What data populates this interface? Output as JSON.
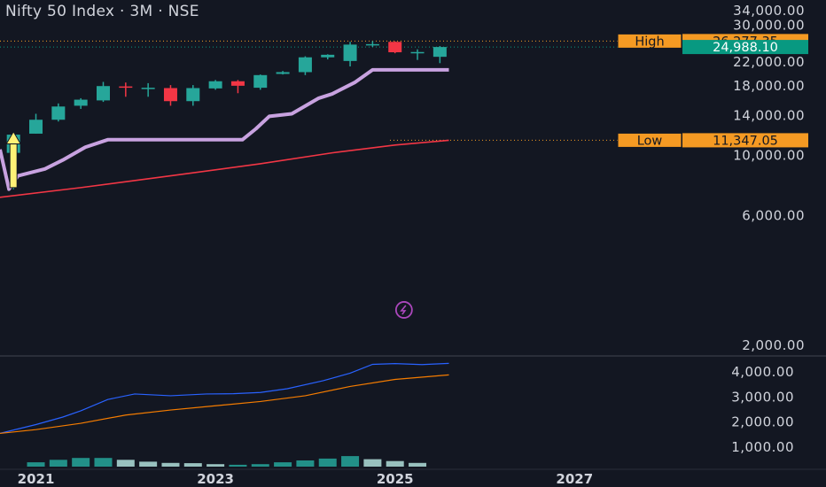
{
  "header": {
    "title": "Nifty 50 Index · 3M · NSE"
  },
  "colors": {
    "background": "#131722",
    "up": "#26a69a",
    "down": "#f23645",
    "text": "#d1d4dc",
    "stair": "#c8a2e0",
    "ma": "#f23645",
    "highlight_tag": "#f59a23",
    "price_tag": "#089981",
    "blue_line": "#2962ff",
    "orange_line": "#f57c00",
    "arrow": "#fff176",
    "icon": "#ab47bc"
  },
  "markers": {
    "high_label": "High",
    "high_value": "26,277.35",
    "high_level": 26277.35,
    "last_value": "24,988.10",
    "last_level": 24988.1,
    "low_label": "Low",
    "low_value": "11,347.05",
    "low_level": 11347.05,
    "flash_icon": "lightning-icon",
    "arrow_icon": "up-arrow-icon"
  },
  "chart_data": [
    {
      "type": "candlestick",
      "title": "Nifty 50 Index · 3M · NSE",
      "scale": "log",
      "ylim": [
        2000,
        34000
      ],
      "y_ticks": [
        {
          "value": 34000,
          "label": "34,000.00"
        },
        {
          "value": 30000,
          "label": "30,000.00"
        },
        {
          "value": 22000,
          "label": "22,000.00"
        },
        {
          "value": 18000,
          "label": "18,000.00"
        },
        {
          "value": 14000,
          "label": "14,000.00"
        },
        {
          "value": 10000,
          "label": "10,000.00"
        },
        {
          "value": 6000,
          "label": "6,000.00"
        },
        {
          "value": 2000,
          "label": "2,000.00"
        }
      ],
      "x_ticks": [
        {
          "value": 2021.0,
          "label": "2021"
        },
        {
          "value": 2023.0,
          "label": "2023"
        },
        {
          "value": 2025.0,
          "label": "2025"
        },
        {
          "value": 2027.0,
          "label": "2027"
        }
      ],
      "xlim": [
        2020.6,
        2028.3
      ],
      "candles": [
        {
          "t": 2020.75,
          "o": 10200,
          "h": 12000,
          "l": 7500,
          "c": 11900
        },
        {
          "t": 2021.0,
          "o": 12000,
          "h": 14200,
          "l": 12000,
          "c": 13500
        },
        {
          "t": 2021.25,
          "o": 13500,
          "h": 15500,
          "l": 13300,
          "c": 15100
        },
        {
          "t": 2021.5,
          "o": 15200,
          "h": 16200,
          "l": 14800,
          "c": 16000
        },
        {
          "t": 2021.75,
          "o": 15900,
          "h": 18600,
          "l": 15700,
          "c": 17950
        },
        {
          "t": 2022.0,
          "o": 17900,
          "h": 18500,
          "l": 16400,
          "c": 17700
        },
        {
          "t": 2022.25,
          "o": 17650,
          "h": 18400,
          "l": 16400,
          "c": 17700
        },
        {
          "t": 2022.5,
          "o": 17650,
          "h": 18100,
          "l": 15200,
          "c": 15800
        },
        {
          "t": 2022.75,
          "o": 15800,
          "h": 18100,
          "l": 15200,
          "c": 17650
        },
        {
          "t": 2023.0,
          "o": 17600,
          "h": 18900,
          "l": 17400,
          "c": 18700
        },
        {
          "t": 2023.25,
          "o": 18700,
          "h": 18900,
          "l": 16900,
          "c": 18000
        },
        {
          "t": 2023.5,
          "o": 17700,
          "h": 19800,
          "l": 17400,
          "c": 19700
        },
        {
          "t": 2023.75,
          "o": 19900,
          "h": 20400,
          "l": 19800,
          "c": 20200
        },
        {
          "t": 2024.0,
          "o": 20200,
          "h": 23100,
          "l": 19700,
          "c": 22900
        },
        {
          "t": 2024.25,
          "o": 22900,
          "h": 23500,
          "l": 22500,
          "c": 23400
        },
        {
          "t": 2024.5,
          "o": 22200,
          "h": 26100,
          "l": 21200,
          "c": 25500
        },
        {
          "t": 2024.75,
          "o": 25500,
          "h": 26277,
          "l": 25000,
          "c": 25600
        },
        {
          "t": 2025.0,
          "o": 26100,
          "h": 26200,
          "l": 23700,
          "c": 23900
        },
        {
          "t": 2025.25,
          "o": 23900,
          "h": 24500,
          "l": 22400,
          "c": 23950
        },
        {
          "t": 2025.5,
          "o": 23000,
          "h": 25200,
          "l": 21800,
          "c": 24988
        }
      ],
      "stair_line": [
        {
          "t": 2020.6,
          "v": 10500
        },
        {
          "t": 2020.7,
          "v": 7500
        },
        {
          "t": 2020.8,
          "v": 8400
        },
        {
          "t": 2021.1,
          "v": 8900
        },
        {
          "t": 2021.3,
          "v": 9600
        },
        {
          "t": 2021.55,
          "v": 10700
        },
        {
          "t": 2021.8,
          "v": 11400
        },
        {
          "t": 2022.0,
          "v": 11400
        },
        {
          "t": 2023.3,
          "v": 11400
        },
        {
          "t": 2023.45,
          "v": 12500
        },
        {
          "t": 2023.6,
          "v": 13900
        },
        {
          "t": 2023.85,
          "v": 14200
        },
        {
          "t": 2024.15,
          "v": 16200
        },
        {
          "t": 2024.3,
          "v": 16800
        },
        {
          "t": 2024.55,
          "v": 18500
        },
        {
          "t": 2024.75,
          "v": 20600
        },
        {
          "t": 2025.6,
          "v": 20600
        }
      ],
      "ma_line": [
        {
          "t": 2020.6,
          "v": 7000
        },
        {
          "t": 2021.5,
          "v": 7600
        },
        {
          "t": 2022.5,
          "v": 8400
        },
        {
          "t": 2023.5,
          "v": 9300
        },
        {
          "t": 2024.3,
          "v": 10200
        },
        {
          "t": 2025.0,
          "v": 10900
        },
        {
          "t": 2025.6,
          "v": 11347
        }
      ]
    },
    {
      "type": "line",
      "ylim": [
        600,
        4400
      ],
      "y_ticks": [
        {
          "value": 4000,
          "label": "4,000.00"
        },
        {
          "value": 3000,
          "label": "3,000.00"
        },
        {
          "value": 2000,
          "label": "2,000.00"
        },
        {
          "value": 1000,
          "label": "1,000.00"
        }
      ],
      "series": [
        {
          "key": "blue",
          "points": [
            {
              "t": 2020.6,
              "v": 1550
            },
            {
              "t": 2021.0,
              "v": 1900
            },
            {
              "t": 2021.3,
              "v": 2200
            },
            {
              "t": 2021.5,
              "v": 2450
            },
            {
              "t": 2021.8,
              "v": 2900
            },
            {
              "t": 2022.1,
              "v": 3120
            },
            {
              "t": 2022.5,
              "v": 3050
            },
            {
              "t": 2022.9,
              "v": 3120
            },
            {
              "t": 2023.2,
              "v": 3130
            },
            {
              "t": 2023.5,
              "v": 3180
            },
            {
              "t": 2023.8,
              "v": 3330
            },
            {
              "t": 2024.2,
              "v": 3650
            },
            {
              "t": 2024.5,
              "v": 3950
            },
            {
              "t": 2024.75,
              "v": 4300
            },
            {
              "t": 2025.0,
              "v": 4330
            },
            {
              "t": 2025.3,
              "v": 4290
            },
            {
              "t": 2025.6,
              "v": 4340
            }
          ]
        },
        {
          "key": "orange",
          "points": [
            {
              "t": 2020.6,
              "v": 1550
            },
            {
              "t": 2021.0,
              "v": 1700
            },
            {
              "t": 2021.5,
              "v": 1950
            },
            {
              "t": 2022.0,
              "v": 2280
            },
            {
              "t": 2022.5,
              "v": 2480
            },
            {
              "t": 2023.0,
              "v": 2650
            },
            {
              "t": 2023.5,
              "v": 2820
            },
            {
              "t": 2024.0,
              "v": 3050
            },
            {
              "t": 2024.5,
              "v": 3420
            },
            {
              "t": 2025.0,
              "v": 3700
            },
            {
              "t": 2025.6,
              "v": 3880
            }
          ]
        }
      ]
    },
    {
      "type": "bar",
      "values": [
        {
          "t": 2021.0,
          "v": 0.35,
          "color": "#26a69a"
        },
        {
          "t": 2021.25,
          "v": 0.55,
          "color": "#26a69a"
        },
        {
          "t": 2021.5,
          "v": 0.7,
          "color": "#26a69a"
        },
        {
          "t": 2021.75,
          "v": 0.7,
          "color": "#26a69a"
        },
        {
          "t": 2022.0,
          "v": 0.55,
          "color": "#b2dfdb"
        },
        {
          "t": 2022.25,
          "v": 0.4,
          "color": "#b2dfdb"
        },
        {
          "t": 2022.5,
          "v": 0.3,
          "color": "#b2dfdb"
        },
        {
          "t": 2022.75,
          "v": 0.28,
          "color": "#b2dfdb"
        },
        {
          "t": 2023.0,
          "v": 0.2,
          "color": "#b2dfdb"
        },
        {
          "t": 2023.25,
          "v": 0.15,
          "color": "#26a69a"
        },
        {
          "t": 2023.5,
          "v": 0.2,
          "color": "#26a69a"
        },
        {
          "t": 2023.75,
          "v": 0.35,
          "color": "#26a69a"
        },
        {
          "t": 2024.0,
          "v": 0.5,
          "color": "#26a69a"
        },
        {
          "t": 2024.25,
          "v": 0.65,
          "color": "#26a69a"
        },
        {
          "t": 2024.5,
          "v": 0.85,
          "color": "#26a69a"
        },
        {
          "t": 2024.75,
          "v": 0.6,
          "color": "#b2dfdb"
        },
        {
          "t": 2025.0,
          "v": 0.45,
          "color": "#b2dfdb"
        },
        {
          "t": 2025.25,
          "v": 0.3,
          "color": "#b2dfdb"
        }
      ]
    }
  ]
}
